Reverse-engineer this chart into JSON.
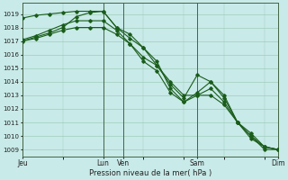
{
  "title": "Pression niveau de la mer( hPa )",
  "bg_color": "#c8eae8",
  "grid_color": "#a0ccbb",
  "line_color": "#1a5c1a",
  "marker_color": "#1a5c1a",
  "ylim": [
    1008.5,
    1019.8
  ],
  "yticks": [
    1009,
    1010,
    1011,
    1012,
    1013,
    1014,
    1015,
    1016,
    1017,
    1018,
    1019
  ],
  "xtick_labels": [
    "Jeu",
    "Lun",
    "Ven",
    "Sam",
    "Dim"
  ],
  "xtick_positions": [
    0,
    6,
    7.5,
    13,
    19
  ],
  "vlines": [
    0,
    6,
    7.5,
    13,
    19
  ],
  "series": [
    [
      1017.0,
      1017.3,
      1017.6,
      1018.0,
      1018.8,
      1019.1,
      1019.2,
      1018.0,
      1017.5,
      1016.5,
      1015.5,
      1013.5,
      1012.5,
      1013.2,
      1014.0,
      1013.0,
      1011.0,
      1010.0,
      1009.2,
      1009.0
    ],
    [
      1018.7,
      1018.9,
      1019.0,
      1019.1,
      1019.2,
      1019.2,
      1019.2,
      1018.0,
      1017.2,
      1016.5,
      1015.2,
      1013.8,
      1012.8,
      1014.5,
      1014.0,
      1012.8,
      1011.0,
      1009.8,
      1009.2,
      1009.0
    ],
    [
      1017.1,
      1017.4,
      1017.8,
      1018.2,
      1018.5,
      1018.5,
      1018.5,
      1017.8,
      1016.8,
      1015.5,
      1014.8,
      1013.2,
      1012.5,
      1013.0,
      1013.0,
      1012.3,
      1011.0,
      1010.2,
      1009.2,
      1009.0
    ],
    [
      1017.0,
      1017.2,
      1017.5,
      1017.8,
      1018.0,
      1018.0,
      1018.0,
      1017.5,
      1016.8,
      1015.8,
      1015.2,
      1014.0,
      1013.0,
      1013.0,
      1013.5,
      1012.5,
      1011.0,
      1010.0,
      1009.0,
      1009.0
    ]
  ],
  "n_points": 20,
  "figsize": [
    3.2,
    2.0
  ],
  "dpi": 100
}
